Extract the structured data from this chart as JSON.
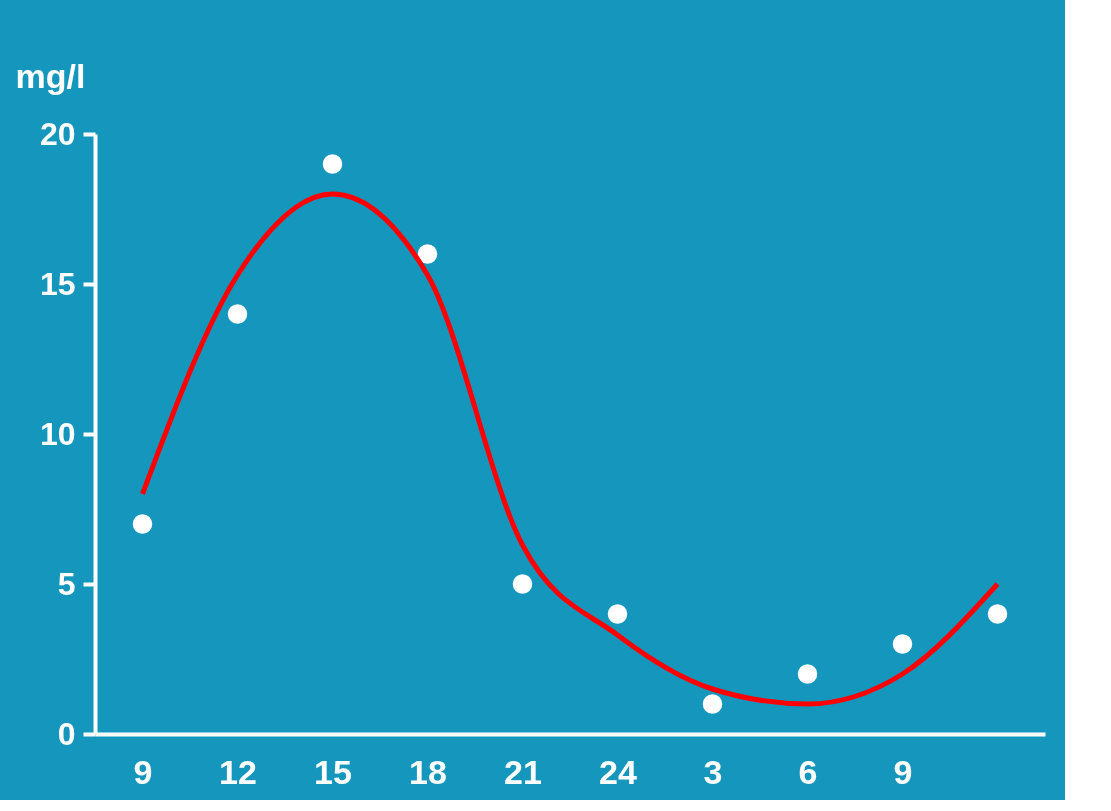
{
  "chart_data": {
    "type": "scatter",
    "ylabel": "mg/l",
    "categories": [
      "9",
      "12",
      "15",
      "18",
      "21",
      "24",
      "3",
      "6",
      "9",
      null
    ],
    "series": [
      {
        "color": "#ffffff",
        "marker": "circle",
        "values": [
          7,
          14,
          19,
          16,
          5,
          4,
          1,
          2,
          3,
          4
        ]
      },
      {
        "type": "line",
        "color": "#ff0000",
        "line_style": "solid",
        "values": [
          8,
          15.3,
          18,
          15.3,
          6.3,
          3.3,
          1.5,
          1,
          2,
          5
        ]
      }
    ],
    "ylim": [
      0,
      20
    ],
    "yticks": [
      0,
      5,
      10,
      15,
      20
    ],
    "grid": false
  }
}
